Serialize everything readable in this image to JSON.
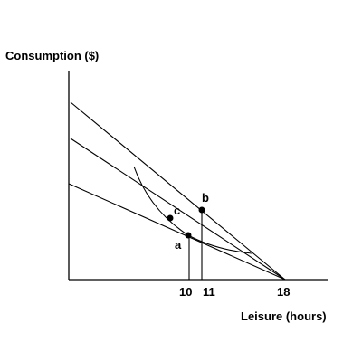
{
  "chart": {
    "y_axis_title": "Consumption ($)",
    "x_axis_title": "Leisure (hours)",
    "x_tick_labels": [
      "10",
      "11",
      "18"
    ],
    "points": [
      {
        "id": "a",
        "label": "a"
      },
      {
        "id": "b",
        "label": "b"
      },
      {
        "id": "c",
        "label": "c"
      }
    ],
    "line_color": "#000000",
    "background_color": "#ffffff"
  }
}
